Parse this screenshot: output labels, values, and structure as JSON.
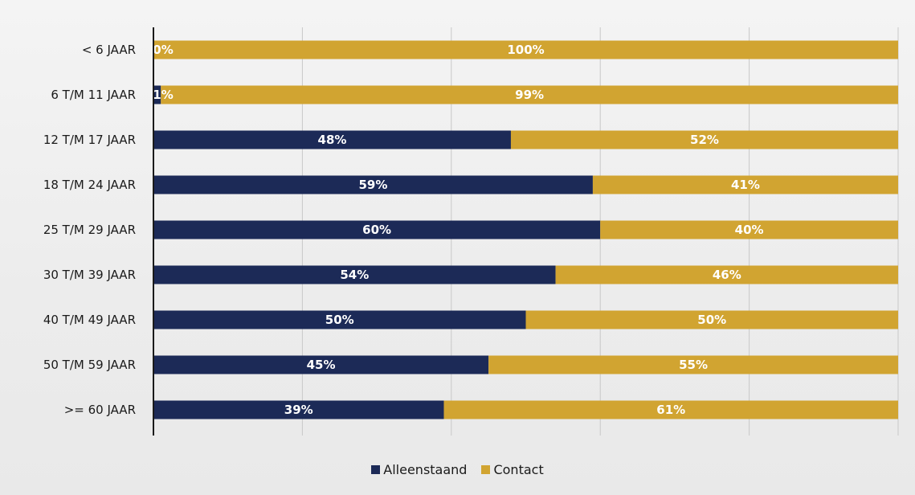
{
  "chart_data": {
    "type": "bar",
    "orientation": "horizontal",
    "stacked": true,
    "categories": [
      "< 6 JAAR",
      "6 T/M 11 JAAR",
      "12 T/M 17 JAAR",
      "18 T/M 24 JAAR",
      "25 T/M 29 JAAR",
      "30 T/M 39 JAAR",
      "40 T/M 49 JAAR",
      "50 T/M 59 JAAR",
      ">= 60 JAAR"
    ],
    "series": [
      {
        "name": "Alleenstaand",
        "values": [
          0,
          1,
          48,
          59,
          60,
          54,
          50,
          45,
          39
        ],
        "labels": [
          "0%",
          "1%",
          "48%",
          "59%",
          "60%",
          "54%",
          "50%",
          "45%",
          "39%"
        ]
      },
      {
        "name": "Contact",
        "values": [
          100,
          99,
          52,
          41,
          40,
          46,
          50,
          55,
          61
        ],
        "labels": [
          "100%",
          "99%",
          "52%",
          "41%",
          "40%",
          "46%",
          "50%",
          "55%",
          "61%"
        ]
      }
    ],
    "xlim": [
      0,
      100
    ],
    "grid": true,
    "legend_position": "bottom",
    "colors": {
      "Alleenstaand": "#1c2a57",
      "Contact": "#d1a431"
    }
  }
}
